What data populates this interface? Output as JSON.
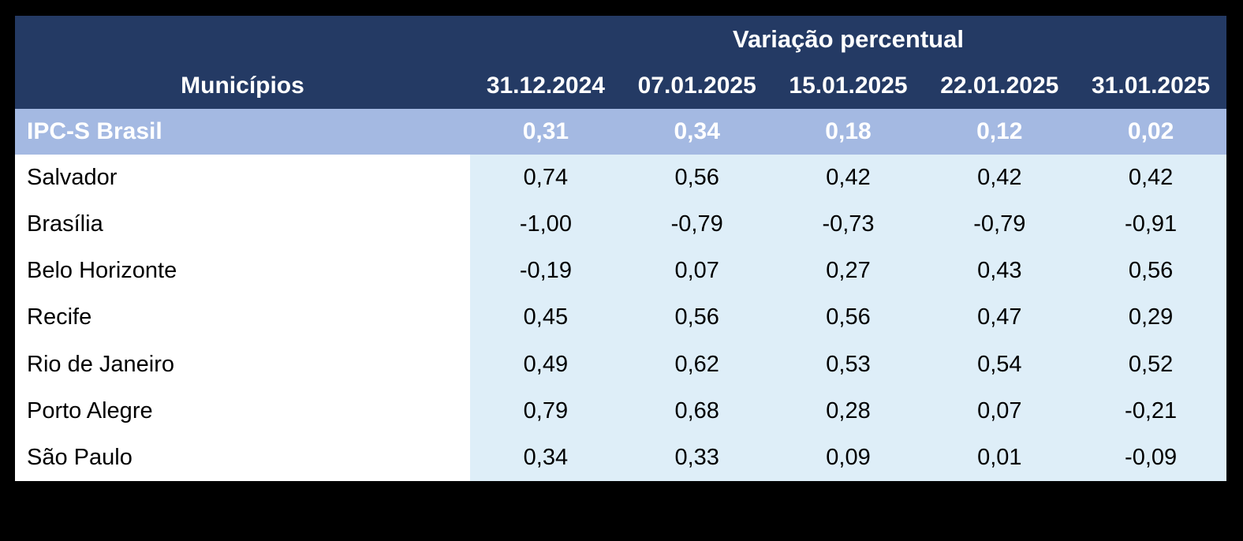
{
  "table": {
    "title": "Variação percentual",
    "name_column_header": "Municípios",
    "date_headers": [
      "31.12.2024",
      "07.01.2025",
      "15.01.2025",
      "22.01.2025",
      "31.01.2025"
    ],
    "highlight_row": {
      "label": "IPC-S Brasil",
      "values": [
        "0,31",
        "0,34",
        "0,18",
        "0,12",
        "0,02"
      ]
    },
    "rows": [
      {
        "label": "Salvador",
        "values": [
          "0,74",
          "0,56",
          "0,42",
          "0,42",
          "0,42"
        ]
      },
      {
        "label": "Brasília",
        "values": [
          "-1,00",
          "-0,79",
          "-0,73",
          "-0,79",
          "-0,91"
        ]
      },
      {
        "label": "Belo Horizonte",
        "values": [
          "-0,19",
          "0,07",
          "0,27",
          "0,43",
          "0,56"
        ]
      },
      {
        "label": "Recife",
        "values": [
          "0,45",
          "0,56",
          "0,56",
          "0,47",
          "0,29"
        ]
      },
      {
        "label": "Rio de Janeiro",
        "values": [
          "0,49",
          "0,62",
          "0,53",
          "0,54",
          "0,52"
        ]
      },
      {
        "label": "Porto Alegre",
        "values": [
          "0,79",
          "0,68",
          "0,28",
          "0,07",
          "-0,21"
        ]
      },
      {
        "label": "São Paulo",
        "values": [
          "0,34",
          "0,33",
          "0,09",
          "0,01",
          "-0,09"
        ]
      }
    ],
    "colors": {
      "header_bg": "#243A64",
      "highlight_bg": "#A4B9E2",
      "data_cell_bg": "#DEEEF8",
      "name_cell_bg": "#FFFFFF",
      "header_text": "#FFFFFF",
      "body_text": "#000000",
      "page_bg": "#000000"
    }
  },
  "chart_data": {
    "type": "table",
    "title": "Variação percentual",
    "columns": [
      "Municípios",
      "31.12.2024",
      "07.01.2025",
      "15.01.2025",
      "22.01.2025",
      "31.01.2025"
    ],
    "rows": [
      [
        "IPC-S Brasil",
        0.31,
        0.34,
        0.18,
        0.12,
        0.02
      ],
      [
        "Salvador",
        0.74,
        0.56,
        0.42,
        0.42,
        0.42
      ],
      [
        "Brasília",
        -1.0,
        -0.79,
        -0.73,
        -0.79,
        -0.91
      ],
      [
        "Belo Horizonte",
        -0.19,
        0.07,
        0.27,
        0.43,
        0.56
      ],
      [
        "Recife",
        0.45,
        0.56,
        0.56,
        0.47,
        0.29
      ],
      [
        "Rio de Janeiro",
        0.49,
        0.62,
        0.53,
        0.54,
        0.52
      ],
      [
        "Porto Alegre",
        0.79,
        0.68,
        0.28,
        0.07,
        -0.21
      ],
      [
        "São Paulo",
        0.34,
        0.33,
        0.09,
        0.01,
        -0.09
      ]
    ],
    "notes": "Values are percentage changes, decimal comma formatting; IPC-S Brasil row highlighted"
  }
}
